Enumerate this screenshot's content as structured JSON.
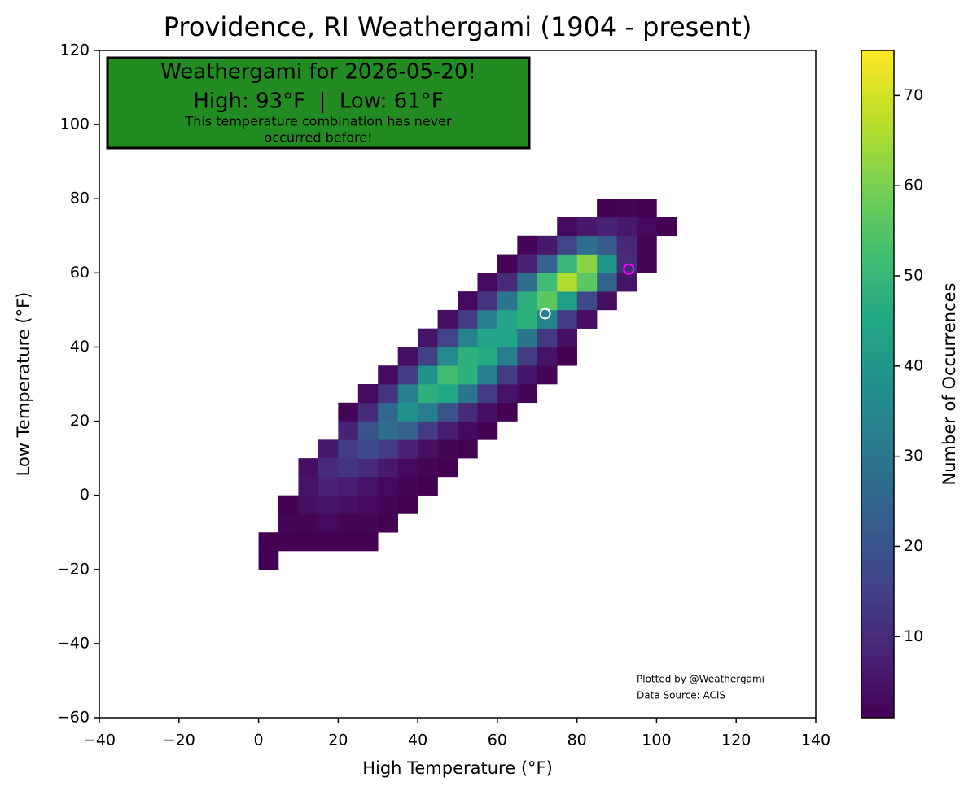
{
  "chart_data": {
    "type": "heatmap",
    "title": "Providence, RI Weathergami (1904 - present)",
    "x_label": "High Temperature (°F)",
    "y_label": "Low Temperature (°F)",
    "colorbar_label": "Number of Occurrences",
    "colormap": "viridis",
    "xlim": [
      -40,
      140
    ],
    "ylim": [
      -60,
      120
    ],
    "xticks": [
      {
        "value": -40,
        "label": "−40"
      },
      {
        "value": -20,
        "label": "−20"
      },
      0,
      20,
      40,
      60,
      80,
      100,
      120,
      140
    ],
    "yticks": [
      {
        "value": -60,
        "label": "−60"
      },
      {
        "value": -40,
        "label": "−40"
      },
      {
        "value": -20,
        "label": "−20"
      },
      0,
      20,
      40,
      60,
      80,
      100,
      120
    ],
    "clim": [
      1,
      75
    ],
    "cticks": [
      10,
      20,
      30,
      40,
      50,
      60,
      70
    ],
    "xbins": [
      -10,
      -5,
      0,
      5,
      10,
      15,
      20,
      25,
      30,
      35,
      40,
      45,
      50,
      55,
      60,
      65,
      70,
      75,
      80,
      85,
      90,
      95,
      100,
      105
    ],
    "ybins": [
      -20,
      -15,
      -10,
      -5,
      0,
      5,
      10,
      15,
      20,
      25,
      30,
      35,
      40,
      45,
      50,
      55,
      60,
      65,
      70,
      75,
      80
    ],
    "z": [
      [
        null,
        null,
        1,
        null,
        null,
        null,
        null,
        null,
        null,
        null,
        null,
        null,
        null,
        null,
        null,
        null,
        null,
        null,
        null,
        null,
        null,
        null,
        null
      ],
      [
        null,
        null,
        1,
        1,
        1,
        1,
        1,
        1,
        null,
        null,
        null,
        null,
        null,
        null,
        null,
        null,
        null,
        null,
        null,
        null,
        null,
        null,
        null
      ],
      [
        null,
        null,
        null,
        2,
        2,
        3,
        2,
        2,
        1,
        null,
        null,
        null,
        null,
        null,
        null,
        null,
        null,
        null,
        null,
        null,
        null,
        null,
        null
      ],
      [
        null,
        null,
        null,
        1,
        4,
        5,
        4,
        3,
        2,
        1,
        null,
        null,
        null,
        null,
        null,
        null,
        null,
        null,
        null,
        null,
        null,
        null,
        null
      ],
      [
        null,
        null,
        null,
        null,
        5,
        8,
        7,
        5,
        3,
        2,
        1,
        null,
        null,
        null,
        null,
        null,
        null,
        null,
        null,
        null,
        null,
        null,
        null
      ],
      [
        null,
        null,
        null,
        null,
        4,
        10,
        12,
        10,
        6,
        3,
        2,
        1,
        null,
        null,
        null,
        null,
        null,
        null,
        null,
        null,
        null,
        null,
        null
      ],
      [
        null,
        null,
        null,
        null,
        null,
        6,
        14,
        18,
        14,
        8,
        4,
        2,
        1,
        null,
        null,
        null,
        null,
        null,
        null,
        null,
        null,
        null,
        null
      ],
      [
        null,
        null,
        null,
        null,
        null,
        null,
        8,
        20,
        28,
        24,
        14,
        7,
        3,
        1,
        null,
        null,
        null,
        null,
        null,
        null,
        null,
        null,
        null
      ],
      [
        null,
        null,
        null,
        null,
        null,
        null,
        2,
        10,
        26,
        38,
        32,
        20,
        10,
        4,
        1,
        null,
        null,
        null,
        null,
        null,
        null,
        null,
        null
      ],
      [
        null,
        null,
        null,
        null,
        null,
        null,
        null,
        3,
        12,
        32,
        48,
        45,
        30,
        14,
        5,
        2,
        null,
        null,
        null,
        null,
        null,
        null,
        null
      ],
      [
        null,
        null,
        null,
        null,
        null,
        null,
        null,
        null,
        3,
        14,
        38,
        52,
        48,
        32,
        14,
        5,
        2,
        null,
        null,
        null,
        null,
        null,
        null
      ],
      [
        null,
        null,
        null,
        null,
        null,
        null,
        null,
        null,
        null,
        4,
        15,
        36,
        48,
        46,
        32,
        14,
        5,
        1,
        null,
        null,
        null,
        null,
        null
      ],
      [
        null,
        null,
        null,
        null,
        null,
        null,
        null,
        null,
        null,
        null,
        5,
        16,
        34,
        44,
        44,
        30,
        13,
        4,
        null,
        null,
        null,
        null,
        null
      ],
      [
        null,
        null,
        null,
        null,
        null,
        null,
        null,
        null,
        null,
        null,
        null,
        4,
        14,
        32,
        44,
        48,
        34,
        14,
        4,
        null,
        null,
        null,
        null
      ],
      [
        null,
        null,
        null,
        null,
        null,
        null,
        null,
        null,
        null,
        null,
        null,
        null,
        3,
        12,
        30,
        48,
        56,
        42,
        18,
        4,
        null,
        null,
        null
      ],
      [
        null,
        null,
        null,
        null,
        null,
        null,
        null,
        null,
        null,
        null,
        null,
        null,
        null,
        3,
        10,
        28,
        52,
        66,
        56,
        24,
        5,
        null,
        null
      ],
      [
        null,
        null,
        null,
        null,
        null,
        null,
        null,
        null,
        null,
        null,
        null,
        null,
        null,
        null,
        2,
        8,
        24,
        50,
        62,
        40,
        10,
        2,
        null
      ],
      [
        null,
        null,
        null,
        null,
        null,
        null,
        null,
        null,
        null,
        null,
        null,
        null,
        null,
        null,
        null,
        2,
        6,
        16,
        28,
        22,
        9,
        2,
        null
      ],
      [
        null,
        null,
        null,
        null,
        null,
        null,
        null,
        null,
        null,
        null,
        null,
        null,
        null,
        null,
        null,
        null,
        null,
        3,
        6,
        8,
        6,
        3,
        1
      ],
      [
        null,
        null,
        null,
        null,
        null,
        null,
        null,
        null,
        null,
        null,
        null,
        null,
        null,
        null,
        null,
        null,
        null,
        null,
        null,
        1,
        2,
        1,
        null
      ]
    ],
    "markers": [
      {
        "x": 72,
        "y": 49,
        "color": "#ffffff"
      },
      {
        "x": 93,
        "y": 61,
        "color": "#ff00ff"
      }
    ],
    "annotation": {
      "heading": "Weathergami for 2026-05-20!",
      "subheading": "High: 93°F  |  Low: 61°F",
      "note": [
        "This temperature combination has never",
        "occurred before!"
      ],
      "color": "#228b22"
    },
    "credits": [
      "Plotted by @Weathergami",
      "Data Source: ACIS"
    ]
  }
}
